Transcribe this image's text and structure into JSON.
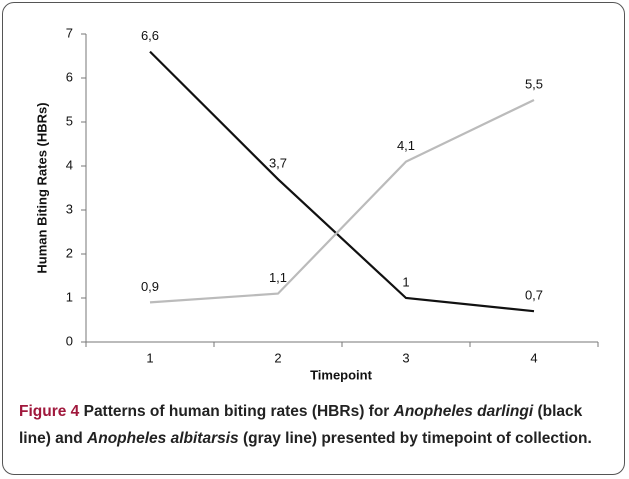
{
  "chart_data": {
    "type": "line",
    "x_label": "Timepoint",
    "y_label": "Human Biting Rates (HBRs)",
    "categories": [
      "1",
      "2",
      "3",
      "4"
    ],
    "series": [
      {
        "color": "#111111",
        "values": [
          6.6,
          3.7,
          1,
          0.7
        ],
        "value_labels": [
          "6,6",
          "3,7",
          "1",
          "0,7"
        ]
      },
      {
        "color": "#bbbbbb",
        "values": [
          0.9,
          1.1,
          4.1,
          5.5
        ],
        "value_labels": [
          "0,9",
          "1,1",
          "4,1",
          "5,5"
        ]
      }
    ],
    "ylim": [
      0,
      7
    ],
    "yticks": [
      0,
      1,
      2,
      3,
      4,
      5,
      6,
      7
    ]
  },
  "caption": {
    "label": "Figure 4",
    "parts": [
      " Patterns of human biting rates (HBRs) for ",
      "Anopheles darlingi",
      " (black line) and ",
      "Anopheles albitarsis",
      " (gray line) presented by timepoint of collection."
    ]
  }
}
